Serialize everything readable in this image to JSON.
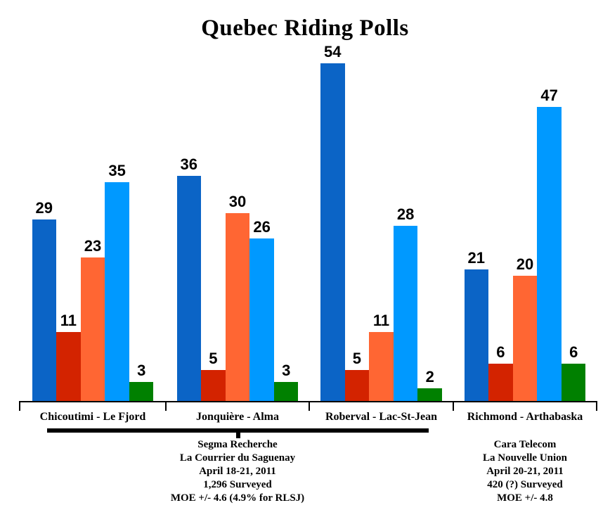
{
  "title": "Quebec Riding Polls",
  "chart_data": {
    "type": "bar",
    "title": "Quebec Riding Polls",
    "categories": [
      "Chicoutimi - Le Fjord",
      "Jonquière - Alma",
      "Roberval - Lac-St-Jean",
      "Richmond - Arthabaska"
    ],
    "series": [
      {
        "name": "dark-blue-bar",
        "color": "#0b64c6",
        "values": [
          29,
          36,
          54,
          21
        ]
      },
      {
        "name": "dark-red-bar",
        "color": "#d32300",
        "values": [
          11,
          5,
          5,
          6
        ]
      },
      {
        "name": "orange-bar",
        "color": "#ff6633",
        "values": [
          23,
          30,
          11,
          20
        ]
      },
      {
        "name": "light-blue-bar",
        "color": "#0099ff",
        "values": [
          35,
          26,
          28,
          47
        ]
      },
      {
        "name": "green-bar",
        "color": "#008000",
        "values": [
          3,
          3,
          2,
          6
        ]
      }
    ],
    "ylim": [
      0,
      57
    ],
    "grid": false,
    "legend": false,
    "value_labels": "above each bar",
    "annotations": "thick black underline groups the first three ridings together"
  },
  "sources": {
    "left": {
      "lines": [
        "Segma Recherche",
        "La Courrier du Saguenay",
        "April 18-21, 2011",
        "1,296 Surveyed",
        "MOE +/- 4.6 (4.9% for RLSJ)"
      ]
    },
    "right": {
      "lines": [
        "Cara Telecom",
        "La Nouvelle Union",
        "April 20-21, 2011",
        "420 (?) Surveyed",
        "MOE +/- 4.8"
      ]
    }
  },
  "colors": {
    "background": "#ffffff",
    "axis": "#000000",
    "text": "#000000"
  }
}
